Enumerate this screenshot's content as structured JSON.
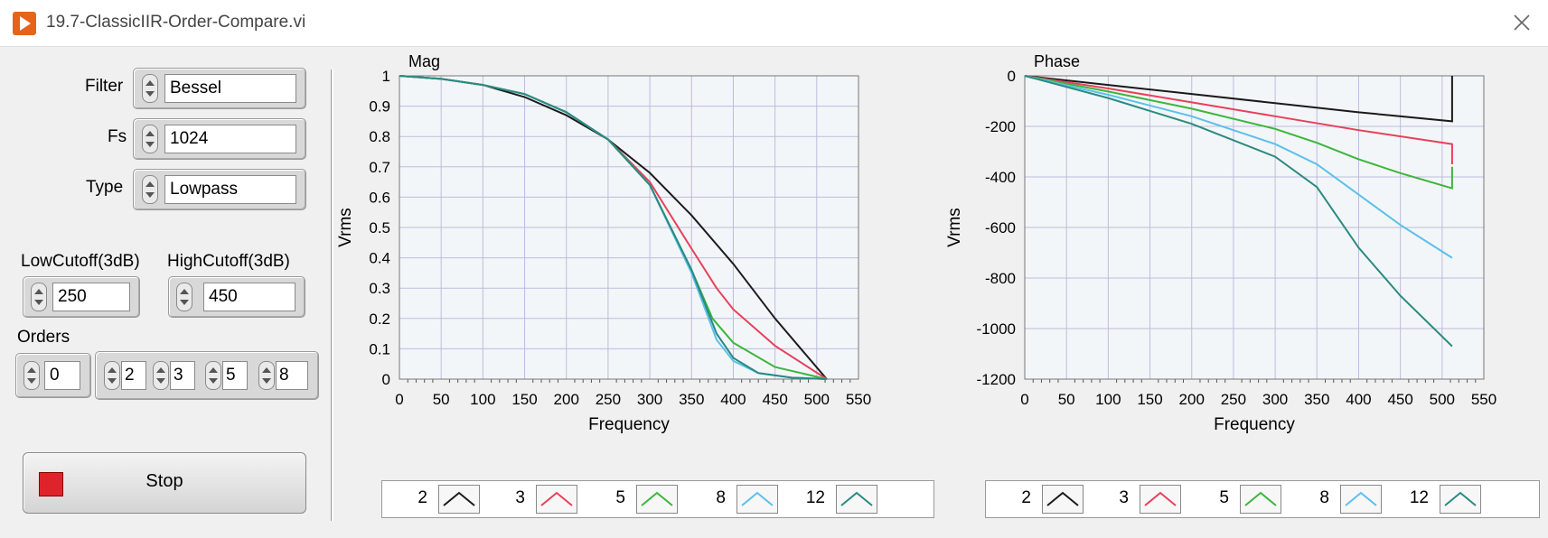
{
  "window": {
    "title": "19.7-ClassicIIR-Order-Compare.vi",
    "close_label": "✕"
  },
  "controls": {
    "filter": {
      "label": "Filter",
      "value": "Bessel"
    },
    "fs": {
      "label": "Fs",
      "value": "1024"
    },
    "type": {
      "label": "Type",
      "value": "Lowpass"
    },
    "low_cutoff": {
      "label": "LowCutoff(3dB)",
      "value": "250"
    },
    "high_cutoff": {
      "label": "HighCutoff(3dB)",
      "value": "450"
    },
    "orders": {
      "label": "Orders",
      "index": "0",
      "values": [
        "2",
        "3",
        "5",
        "8"
      ]
    },
    "stop": {
      "label": "Stop"
    }
  },
  "colors": {
    "order_2": "#1a1a1a",
    "order_3": "#e8405a",
    "order_5": "#3cb53c",
    "order_8": "#5bc0eb",
    "order_12": "#2a8a80",
    "grid": "#bcbcdc",
    "plot_bg": "#f3f6f8"
  },
  "chart_data": [
    {
      "type": "line",
      "title": "Mag",
      "xlabel": "Frequency",
      "ylabel": "Vrms",
      "xlim": [
        0,
        550
      ],
      "ylim": [
        0,
        1
      ],
      "x_ticks": [
        "0",
        "50",
        "100",
        "150",
        "200",
        "250",
        "300",
        "350",
        "400",
        "450",
        "500",
        "550"
      ],
      "y_ticks": [
        "0",
        "0.1",
        "0.2",
        "0.3",
        "0.4",
        "0.5",
        "0.6",
        "0.7",
        "0.8",
        "0.9",
        "1"
      ],
      "grid": true,
      "legend": [
        "2",
        "3",
        "5",
        "8",
        "12"
      ],
      "series": [
        {
          "name": "2",
          "color": "#1a1a1a",
          "x": [
            0,
            50,
            100,
            150,
            200,
            250,
            300,
            350,
            400,
            450,
            512
          ],
          "y": [
            1,
            0.99,
            0.97,
            0.93,
            0.87,
            0.79,
            0.68,
            0.54,
            0.38,
            0.2,
            0
          ]
        },
        {
          "name": "3",
          "color": "#e8405a",
          "x": [
            0,
            50,
            100,
            150,
            200,
            250,
            300,
            350,
            380,
            400,
            450,
            512
          ],
          "y": [
            1,
            0.99,
            0.97,
            0.94,
            0.88,
            0.79,
            0.65,
            0.43,
            0.3,
            0.23,
            0.11,
            0
          ]
        },
        {
          "name": "5",
          "color": "#3cb53c",
          "x": [
            0,
            50,
            100,
            150,
            200,
            250,
            300,
            350,
            375,
            400,
            450,
            512
          ],
          "y": [
            1,
            0.99,
            0.97,
            0.94,
            0.88,
            0.79,
            0.64,
            0.36,
            0.2,
            0.12,
            0.04,
            0
          ]
        },
        {
          "name": "8",
          "color": "#5bc0eb",
          "x": [
            0,
            50,
            100,
            150,
            200,
            250,
            300,
            350,
            380,
            400,
            430,
            470,
            512
          ],
          "y": [
            1,
            0.99,
            0.97,
            0.94,
            0.88,
            0.79,
            0.64,
            0.35,
            0.13,
            0.06,
            0.02,
            0.005,
            0
          ]
        },
        {
          "name": "12",
          "color": "#2a8a80",
          "x": [
            0,
            50,
            100,
            150,
            200,
            250,
            300,
            350,
            380,
            400,
            430,
            470,
            512
          ],
          "y": [
            1,
            0.99,
            0.97,
            0.94,
            0.88,
            0.79,
            0.64,
            0.36,
            0.15,
            0.07,
            0.02,
            0.005,
            0
          ]
        }
      ]
    },
    {
      "type": "line",
      "title": "Phase",
      "xlabel": "Frequency",
      "ylabel": "Vrms",
      "xlim": [
        0,
        550
      ],
      "ylim": [
        -1200,
        0
      ],
      "x_ticks": [
        "0",
        "50",
        "100",
        "150",
        "200",
        "250",
        "300",
        "350",
        "400",
        "450",
        "500",
        "550"
      ],
      "y_ticks": [
        "0",
        "-200",
        "-400",
        "-600",
        "-800",
        "-1000",
        "-1200"
      ],
      "grid": true,
      "legend": [
        "2",
        "3",
        "5",
        "8",
        "12"
      ],
      "series": [
        {
          "name": "2",
          "color": "#1a1a1a",
          "x": [
            0,
            100,
            200,
            300,
            400,
            512,
            512
          ],
          "y": [
            0,
            -36,
            -72,
            -108,
            -144,
            -180,
            0
          ]
        },
        {
          "name": "3",
          "color": "#e8405a",
          "x": [
            0,
            100,
            200,
            300,
            400,
            512,
            512
          ],
          "y": [
            0,
            -50,
            -105,
            -160,
            -215,
            -270,
            -350
          ]
        },
        {
          "name": "5",
          "color": "#3cb53c",
          "x": [
            0,
            100,
            200,
            300,
            350,
            400,
            450,
            512,
            512
          ],
          "y": [
            0,
            -62,
            -130,
            -210,
            -265,
            -330,
            -385,
            -445,
            -360
          ]
        },
        {
          "name": "8",
          "color": "#5bc0eb",
          "x": [
            0,
            100,
            200,
            300,
            350,
            400,
            450,
            512
          ],
          "y": [
            0,
            -75,
            -160,
            -270,
            -350,
            -470,
            -590,
            -720
          ]
        },
        {
          "name": "12",
          "color": "#2a8a80",
          "x": [
            0,
            100,
            200,
            300,
            350,
            400,
            450,
            512
          ],
          "y": [
            0,
            -88,
            -190,
            -320,
            -440,
            -680,
            -870,
            -1070
          ]
        }
      ]
    }
  ]
}
